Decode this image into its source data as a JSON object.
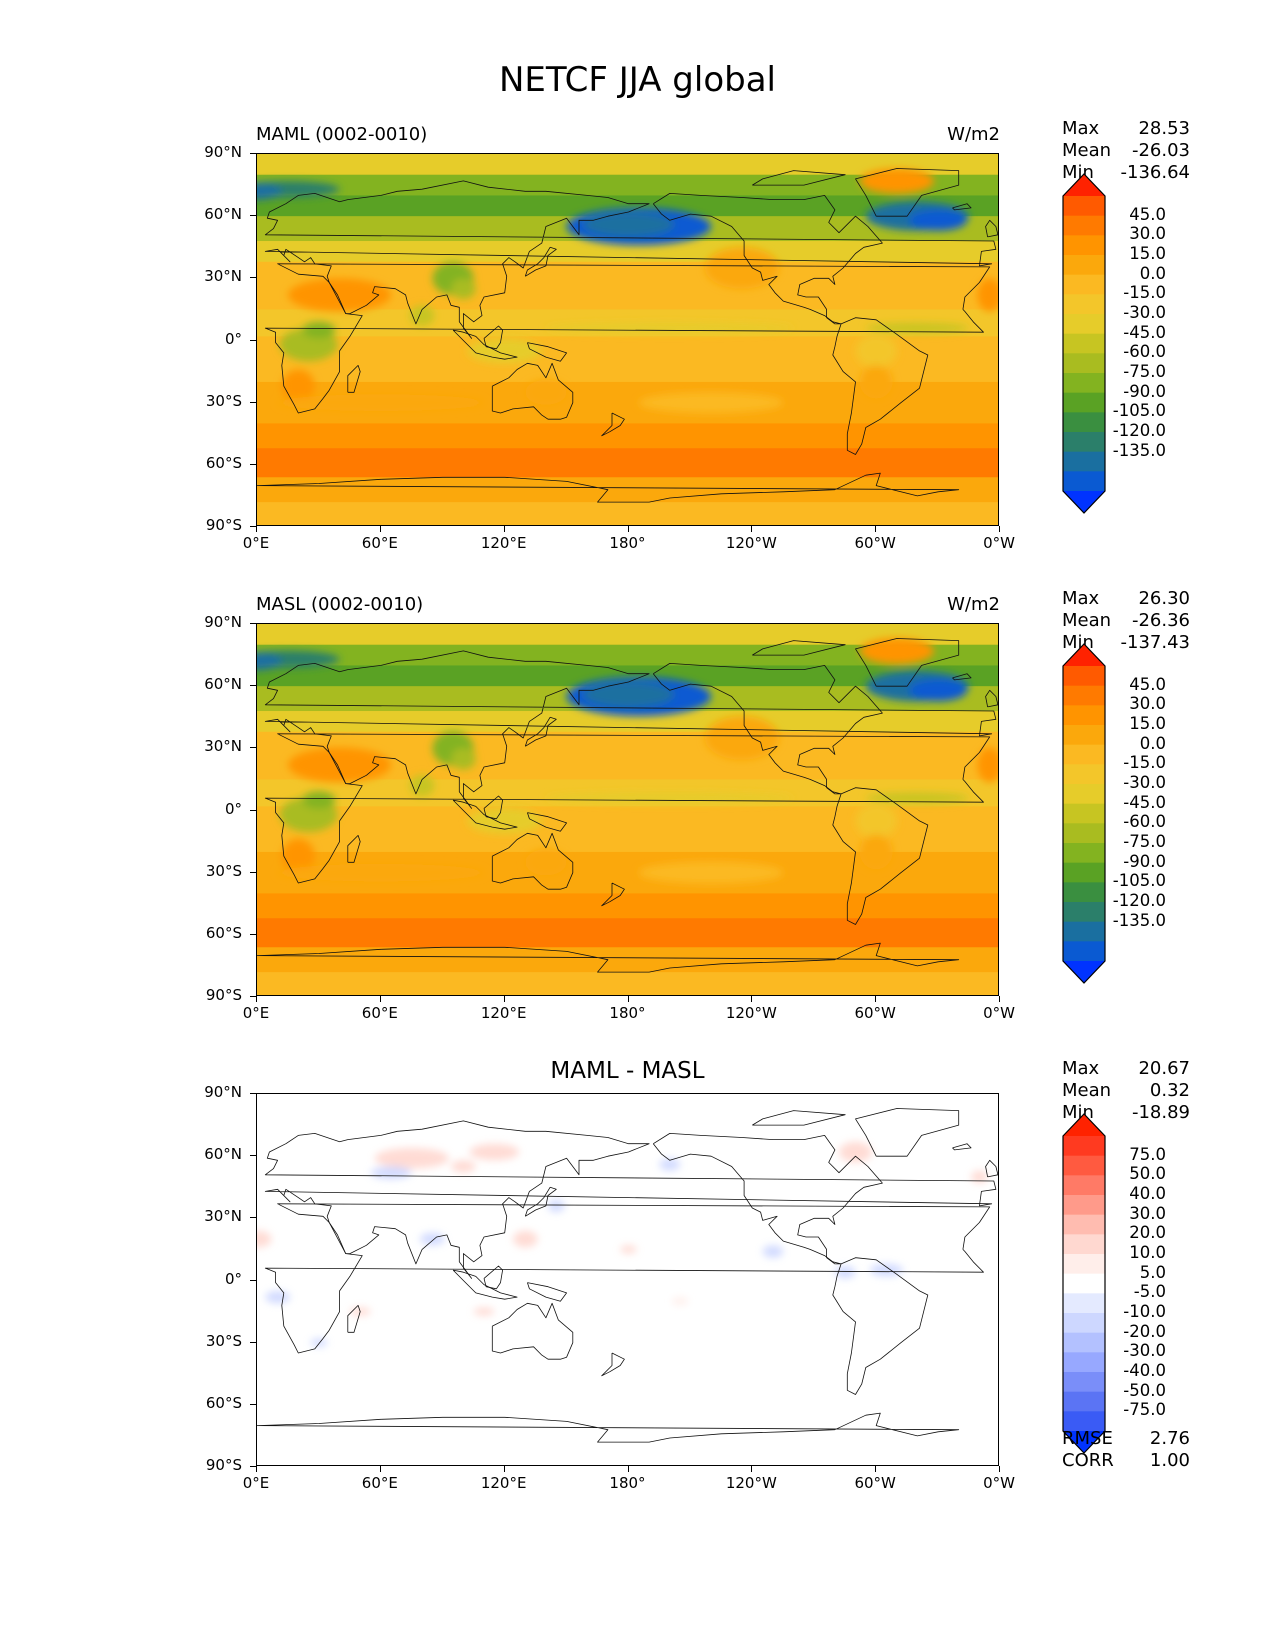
{
  "figure": {
    "title": "NETCF JJA global"
  },
  "x_ticks": [
    "0°E",
    "60°E",
    "120°E",
    "180°",
    "120°W",
    "60°W",
    "0°W"
  ],
  "y_ticks": [
    "90°N",
    "60°N",
    "30°N",
    "0°",
    "30°S",
    "60°S",
    "90°S"
  ],
  "panels": [
    {
      "title": "MAML (0002-0010)",
      "units": "W/m2",
      "stats": [
        {
          "name": "Max",
          "value": "28.53"
        },
        {
          "name": "Mean",
          "value": "-26.03"
        },
        {
          "name": "Min",
          "value": "-136.64"
        }
      ],
      "colorbar_labels": [
        "45.0",
        "30.0",
        "15.0",
        "0.0",
        "-15.0",
        "-30.0",
        "-45.0",
        "-60.0",
        "-75.0",
        "-90.0",
        "-105.0",
        "-120.0",
        "-135.0"
      ]
    },
    {
      "title": "MASL (0002-0010)",
      "units": "W/m2",
      "stats": [
        {
          "name": "Max",
          "value": "26.30"
        },
        {
          "name": "Mean",
          "value": "-26.36"
        },
        {
          "name": "Min",
          "value": "-137.43"
        }
      ],
      "colorbar_labels": [
        "45.0",
        "30.0",
        "15.0",
        "0.0",
        "-15.0",
        "-30.0",
        "-45.0",
        "-60.0",
        "-75.0",
        "-90.0",
        "-105.0",
        "-120.0",
        "-135.0"
      ]
    },
    {
      "title": "MAML - MASL",
      "units": "",
      "stats": [
        {
          "name": "Max",
          "value": "20.67"
        },
        {
          "name": "Mean",
          "value": "0.32"
        },
        {
          "name": "Min",
          "value": "-18.89"
        }
      ],
      "colorbar_labels": [
        "75.0",
        "50.0",
        "40.0",
        "30.0",
        "20.0",
        "10.0",
        "5.0",
        "-5.0",
        "-10.0",
        "-20.0",
        "-30.0",
        "-40.0",
        "-50.0",
        "-75.0"
      ],
      "extra_stats": [
        {
          "name": "RMSE",
          "value": "2.76"
        },
        {
          "name": "CORR",
          "value": "1.00"
        }
      ]
    }
  ],
  "colorbars": {
    "field": {
      "over": "#ff2200",
      "under": "#0033ff",
      "bins": [
        "#ff5a00",
        "#ff7a00",
        "#ff9400",
        "#fba80c",
        "#fbb922",
        "#f3c62a",
        "#e6cc2a",
        "#c7c522",
        "#a9bc20",
        "#83b320",
        "#5aa224",
        "#3a8f40",
        "#2b7f6a",
        "#1a6fa0",
        "#0a5ad2"
      ]
    },
    "diff": {
      "over": "#ff2200",
      "under": "#0033ff",
      "bins": [
        "#ff3a20",
        "#ff5a40",
        "#ff7a66",
        "#ff9a8a",
        "#ffbcb0",
        "#ffd8d0",
        "#ffeeea",
        "#ffffff",
        "#e4eaff",
        "#cdd7ff",
        "#b3c1ff",
        "#97a8ff",
        "#7a8ef9",
        "#5b74f4",
        "#3a5bf5"
      ]
    }
  },
  "chart_data": [
    {
      "type": "heatmap",
      "title": "MAML (0002-0010)",
      "units": "W/m2",
      "xlim": [
        0,
        360
      ],
      "ylim": [
        -90,
        90
      ],
      "x_ticks": [
        0,
        60,
        120,
        180,
        240,
        300,
        360
      ],
      "y_ticks": [
        90,
        60,
        30,
        0,
        -30,
        -60,
        -90
      ],
      "levels": [
        -135,
        -120,
        -105,
        -90,
        -75,
        -60,
        -45,
        -30,
        -15,
        0,
        15,
        30,
        45
      ],
      "max": 28.53,
      "mean": -26.03,
      "min": -136.64
    },
    {
      "type": "heatmap",
      "title": "MASL (0002-0010)",
      "units": "W/m2",
      "xlim": [
        0,
        360
      ],
      "ylim": [
        -90,
        90
      ],
      "x_ticks": [
        0,
        60,
        120,
        180,
        240,
        300,
        360
      ],
      "y_ticks": [
        90,
        60,
        30,
        0,
        -30,
        -60,
        -90
      ],
      "levels": [
        -135,
        -120,
        -105,
        -90,
        -75,
        -60,
        -45,
        -30,
        -15,
        0,
        15,
        30,
        45
      ],
      "max": 26.3,
      "mean": -26.36,
      "min": -137.43
    },
    {
      "type": "heatmap",
      "title": "MAML - MASL",
      "xlim": [
        0,
        360
      ],
      "ylim": [
        -90,
        90
      ],
      "x_ticks": [
        0,
        60,
        120,
        180,
        240,
        300,
        360
      ],
      "y_ticks": [
        90,
        60,
        30,
        0,
        -30,
        -60,
        -90
      ],
      "levels": [
        -75,
        -50,
        -40,
        -30,
        -20,
        -10,
        -5,
        5,
        10,
        20,
        30,
        40,
        50,
        75
      ],
      "max": 20.67,
      "mean": 0.32,
      "min": -18.89,
      "rmse": 2.76,
      "corr": 1.0
    }
  ]
}
